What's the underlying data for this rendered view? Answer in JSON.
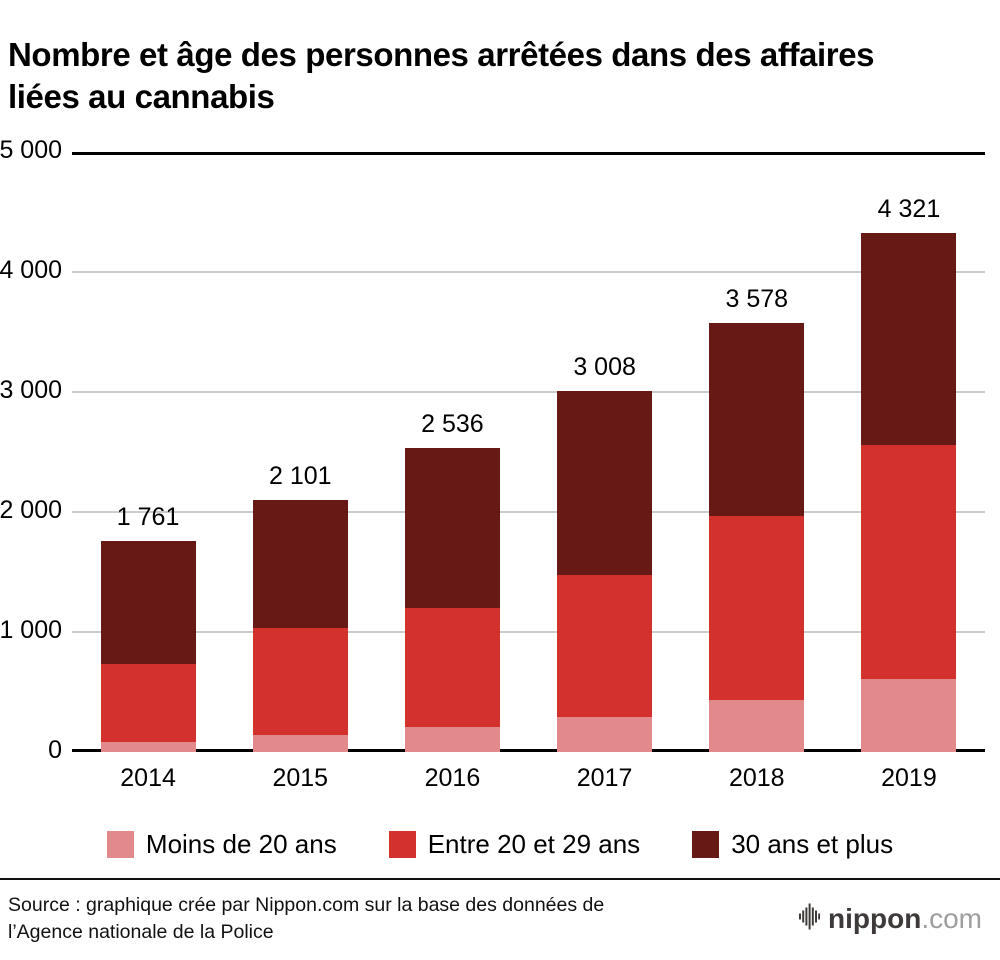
{
  "chart_data": {
    "type": "bar",
    "stacked": true,
    "title": "Nombre et âge des personnes arrêtées dans des affaires liées au cannabis",
    "categories": [
      "2014",
      "2015",
      "2016",
      "2017",
      "2018",
      "2019"
    ],
    "series": [
      {
        "name": "Moins de 20 ans",
        "color": "#E28A8B",
        "values": [
          80,
          140,
          210,
          295,
          430,
          610
        ]
      },
      {
        "name": "Entre 20 et 29 ans",
        "color": "#D3312D",
        "values": [
          655,
          895,
          990,
          1180,
          1535,
          1950
        ]
      },
      {
        "name": "30 ans et plus",
        "color": "#671916",
        "values": [
          1026,
          1066,
          1336,
          1533,
          1613,
          1761
        ]
      }
    ],
    "totals": [
      1761,
      2101,
      2536,
      3008,
      3578,
      4321
    ],
    "total_labels": [
      "1 761",
      "2 101",
      "2 536",
      "3 008",
      "3 578",
      "4 321"
    ],
    "ylim": [
      0,
      5000
    ],
    "yticks": [
      0,
      1000,
      2000,
      3000,
      4000,
      5000
    ],
    "ytick_labels": [
      "0",
      "1 000",
      "2 000",
      "3 000",
      "4 000",
      "5 000"
    ],
    "grid": true,
    "legend_position": "bottom",
    "colors": {
      "grid": "#cccccc",
      "axis": "#000000"
    }
  },
  "footer": {
    "source_line1": "Source : graphique crée par Nippon.com sur la base des données de",
    "source_line2": "l’Agence nationale de la Police",
    "logo": {
      "icon": "soundwave-bars-icon",
      "name": "nippon",
      "suffix": ".com"
    }
  }
}
